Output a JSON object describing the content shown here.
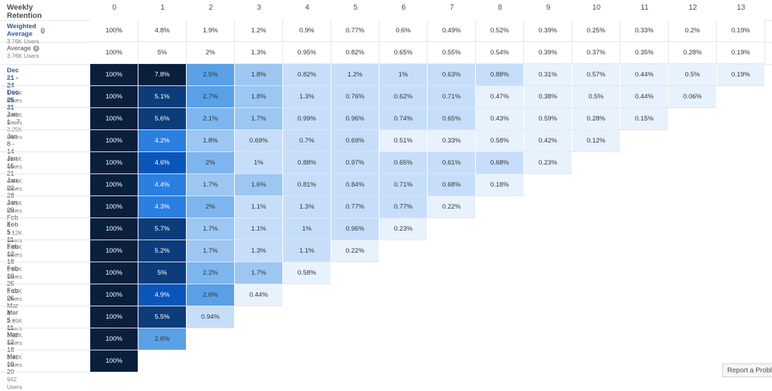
{
  "header": {
    "title": "Weekly Retention",
    "columns": [
      "0",
      "1",
      "2",
      "3",
      "4",
      "5",
      "6",
      "7",
      "8",
      "9",
      "10",
      "11",
      "12",
      "13"
    ]
  },
  "averages": [
    {
      "label": "Weighted Average",
      "users": "3.76K Users",
      "bold": true,
      "values": [
        "100%",
        "4.8%",
        "1.9%",
        "1.2%",
        "0.9%",
        "0.77%",
        "0.6%",
        "0.49%",
        "0.52%",
        "0.39%",
        "0.25%",
        "0.33%",
        "0.2%",
        "0.19%"
      ]
    },
    {
      "label": "Average",
      "users": "3.76K Users",
      "bold": false,
      "values": [
        "100%",
        "5%",
        "2%",
        "1.3%",
        "0.95%",
        "0.82%",
        "0.65%",
        "0.55%",
        "0.54%",
        "0.39%",
        "0.37%",
        "0.35%",
        "0.28%",
        "0.19%"
      ]
    }
  ],
  "cohorts": [
    {
      "label": "Dec 21 - 24",
      "users": "1.59K Users",
      "bold": true,
      "values": [
        "100%",
        "7.8%",
        "2.5%",
        "1.8%",
        "0.82%",
        "1.2%",
        "1%",
        "0.63%",
        "0.88%",
        "0.31%",
        "0.57%",
        "0.44%",
        "0.5%",
        "0.19%"
      ]
    },
    {
      "label": "Dec 25 - 31",
      "users": "3.40K Users",
      "bold": true,
      "values": [
        "100%",
        "5.1%",
        "2.7%",
        "1.8%",
        "1.3%",
        "0.76%",
        "0.62%",
        "0.71%",
        "0.47%",
        "0.38%",
        "0.5%",
        "0.44%",
        "0.06%"
      ]
    },
    {
      "label": "Jan 1 - 7",
      "users": "3.25K Users",
      "bold": false,
      "values": [
        "100%",
        "5.6%",
        "2.1%",
        "1.7%",
        "0.99%",
        "0.96%",
        "0.74%",
        "0.65%",
        "0.43%",
        "0.59%",
        "0.28%",
        "0.15%"
      ]
    },
    {
      "label": "Jan 8 - 14",
      "users": "11.4K Users",
      "bold": false,
      "values": [
        "100%",
        "4.2%",
        "1.8%",
        "0.69%",
        "0.7%",
        "0.69%",
        "0.51%",
        "0.33%",
        "0.58%",
        "0.42%",
        "0.12%"
      ]
    },
    {
      "label": "Jan 15 - 21",
      "users": "4.44K Users",
      "bold": false,
      "values": [
        "100%",
        "4.6%",
        "2%",
        "1%",
        "0.88%",
        "0.97%",
        "0.65%",
        "0.61%",
        "0.68%",
        "0.23%"
      ]
    },
    {
      "label": "Jan 22 - 28",
      "users": "3.95K Users",
      "bold": false,
      "values": [
        "100%",
        "4.4%",
        "1.7%",
        "1.6%",
        "0.81%",
        "0.84%",
        "0.71%",
        "0.68%",
        "0.18%"
      ]
    },
    {
      "label": "Jan 29 - Feb 4",
      "users": "3.12K Users",
      "bold": false,
      "values": [
        "100%",
        "4.3%",
        "2%",
        "1.1%",
        "1.3%",
        "0.77%",
        "0.77%",
        "0.22%"
      ]
    },
    {
      "label": "Feb 5 - 11",
      "users": "3.85K Users",
      "bold": false,
      "values": [
        "100%",
        "5.7%",
        "1.7%",
        "1.1%",
        "1%",
        "0.96%",
        "0.23%"
      ]
    },
    {
      "label": "Feb 12 - 18",
      "users": "3.63K Users",
      "bold": false,
      "values": [
        "100%",
        "5.2%",
        "1.7%",
        "1.3%",
        "1.1%",
        "0.22%"
      ]
    },
    {
      "label": "Feb 19 - 25",
      "users": "3.12K Users",
      "bold": false,
      "values": [
        "100%",
        "5%",
        "2.2%",
        "1.7%",
        "0.58%"
      ]
    },
    {
      "label": "Feb 26 - Mar 4",
      "users": "2.95K Users",
      "bold": false,
      "values": [
        "100%",
        "4.9%",
        "2.6%",
        "0.44%"
      ]
    },
    {
      "label": "Mar 5 - 11",
      "users": "3.62K Users",
      "bold": false,
      "values": [
        "100%",
        "5.5%",
        "0.94%"
      ]
    },
    {
      "label": "Mar 12 - 18",
      "users": "3.41K Users",
      "bold": false,
      "values": [
        "100%",
        "2.6%"
      ]
    },
    {
      "label": "Mar 19 - 20",
      "users": "942 Users",
      "bold": false,
      "values": [
        "100%"
      ]
    }
  ],
  "colors": {
    "dark": "#0a1f3c",
    "high": "#0d3c7a",
    "mid_high": "#1f6fd6",
    "mid": "#5aa0e6",
    "low": "#9cc7f2",
    "lighter": "#c7defa",
    "lightest": "#e8f2fd"
  },
  "report_button": "Report a Problem"
}
